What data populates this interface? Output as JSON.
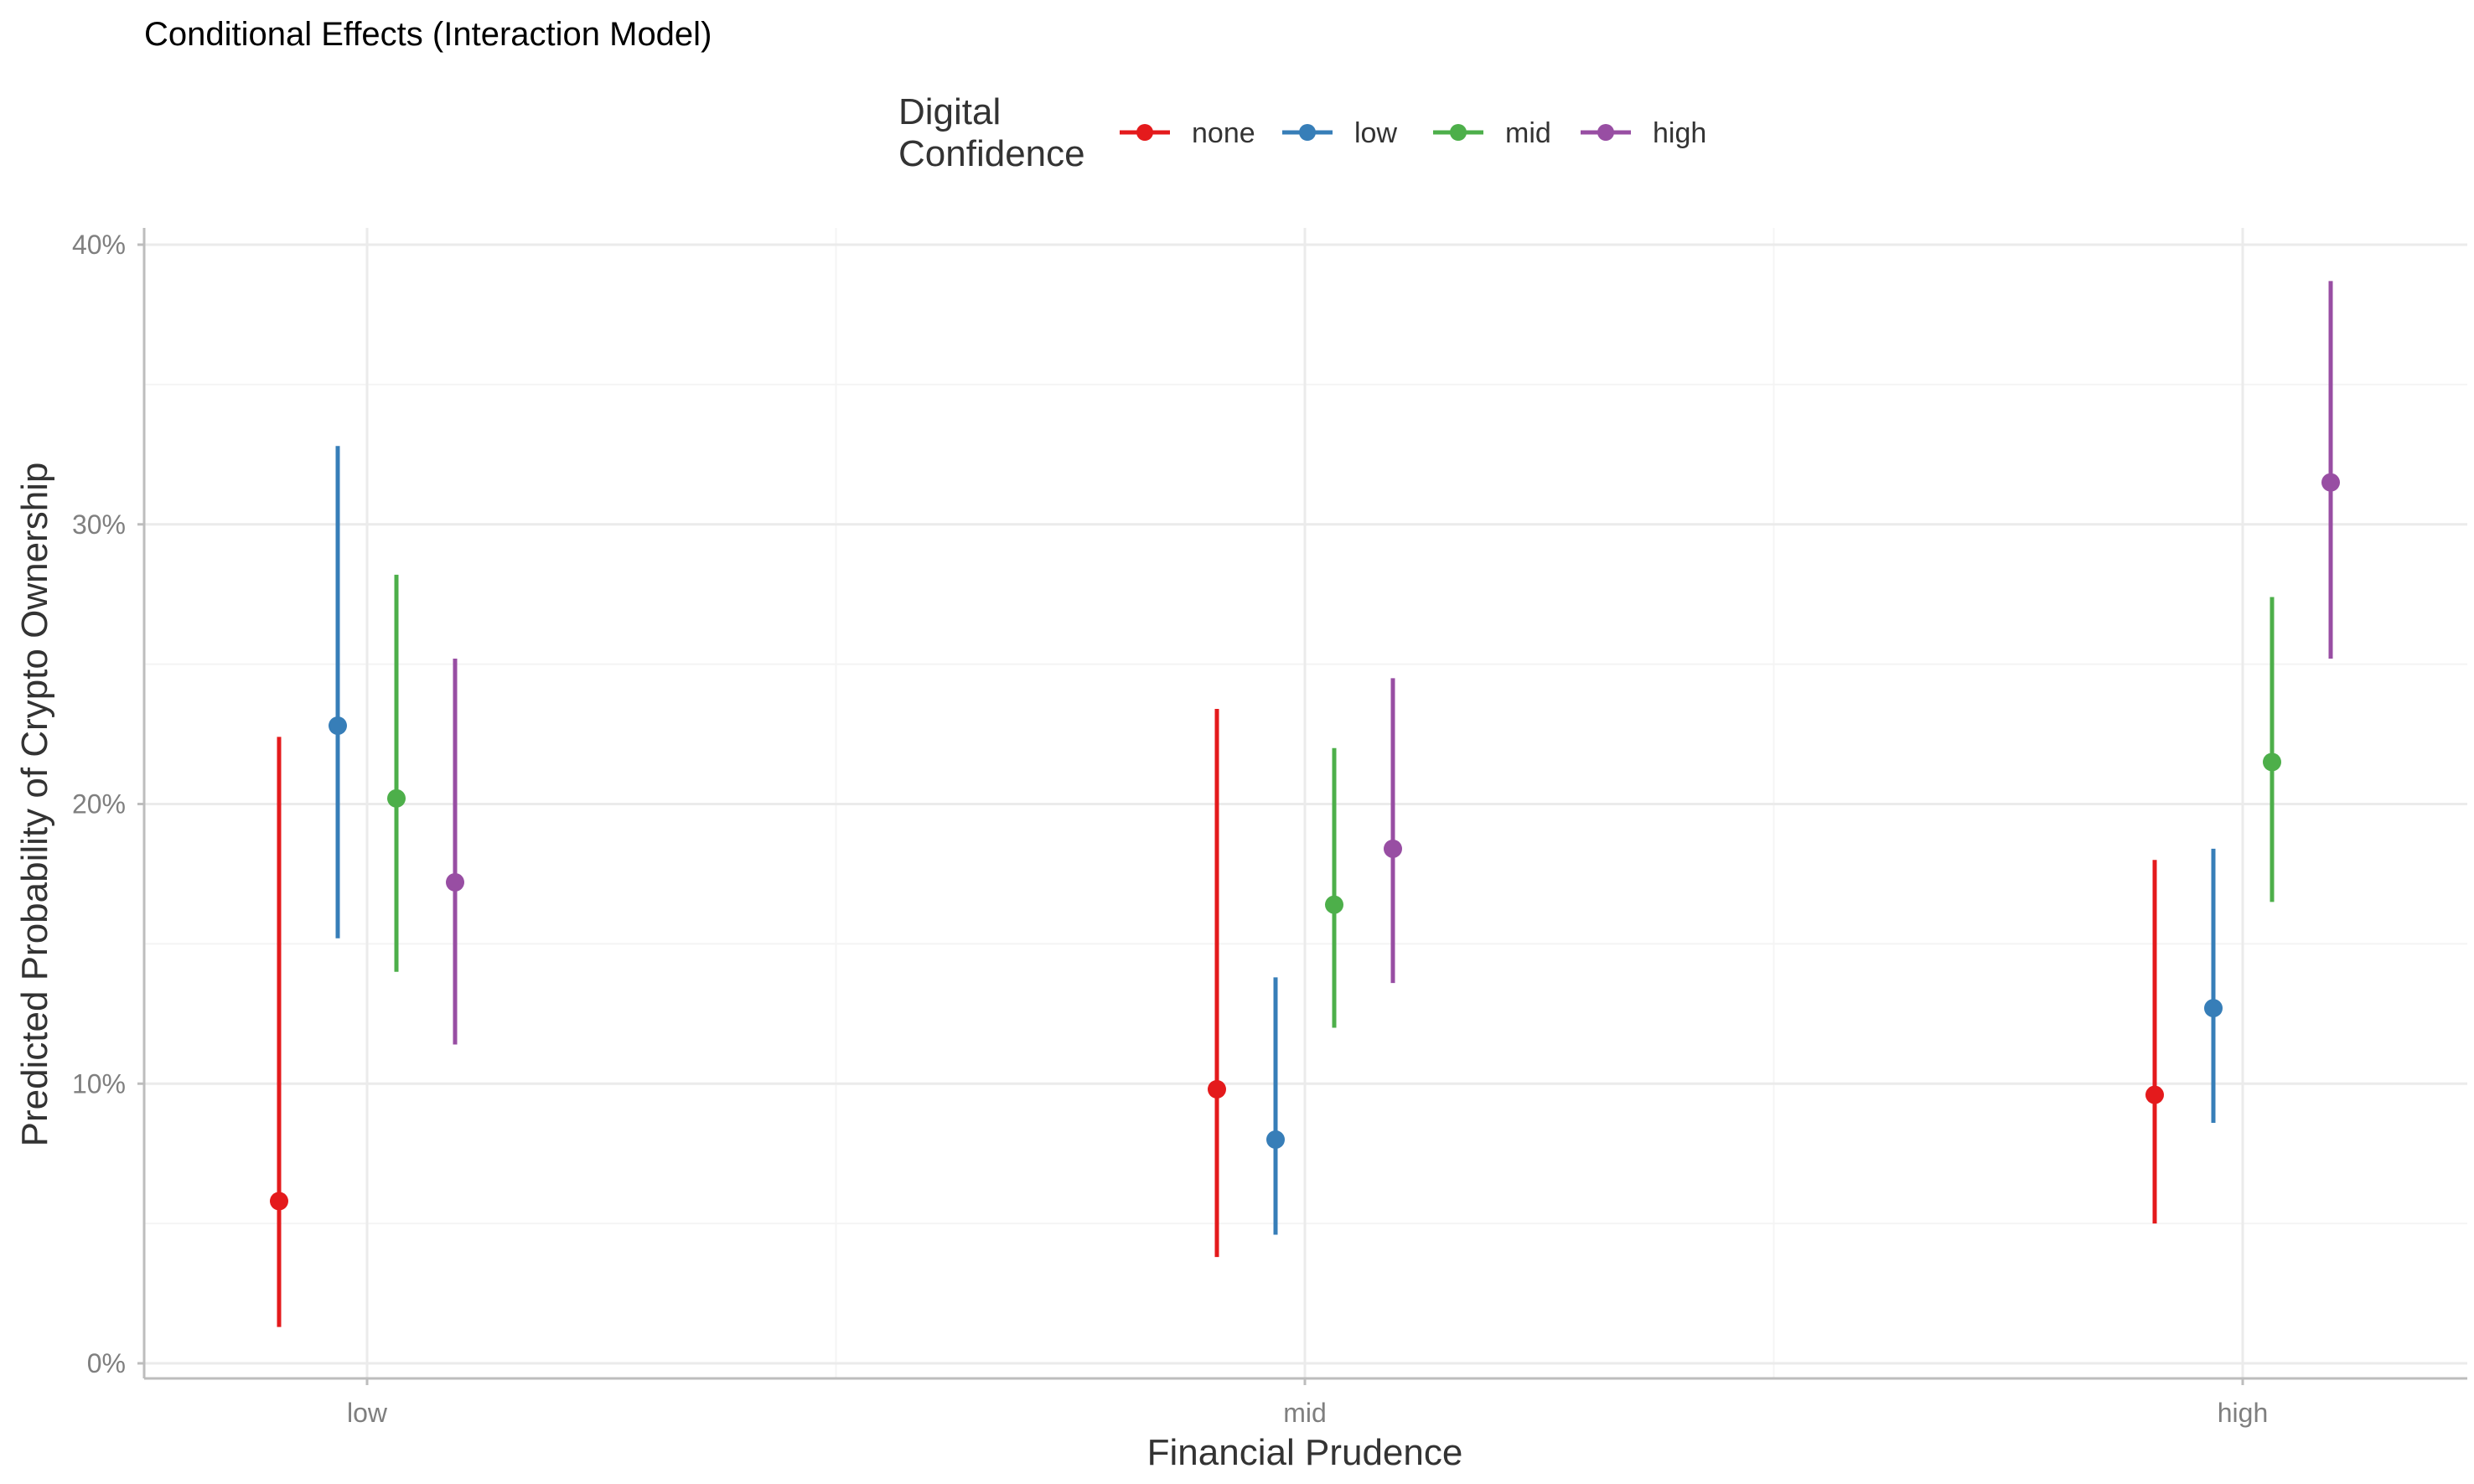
{
  "chart_data": {
    "type": "pointrange",
    "title": "Conditional Effects (Interaction Model)",
    "xlabel": "Financial Prudence",
    "ylabel": "Predicted Probability of Crypto Ownership",
    "categories": [
      "low",
      "mid",
      "high"
    ],
    "ylim": [
      0,
      0.4
    ],
    "yticks": [
      0,
      0.1,
      0.2,
      0.3,
      0.4
    ],
    "ytick_labels": [
      "0%",
      "10%",
      "20%",
      "30%",
      "40%"
    ],
    "grid": true,
    "legend": {
      "title_lines": [
        "Digital",
        "Confidence"
      ],
      "placement": "top"
    },
    "series": [
      {
        "name": "none",
        "color": "#e41a1c",
        "values": [
          0.058,
          0.098,
          0.096
        ],
        "lower": [
          0.013,
          0.038,
          0.05
        ],
        "upper": [
          0.224,
          0.234,
          0.18
        ]
      },
      {
        "name": "low",
        "color": "#377eb8",
        "values": [
          0.228,
          0.08,
          0.127
        ],
        "lower": [
          0.152,
          0.046,
          0.086
        ],
        "upper": [
          0.328,
          0.138,
          0.184
        ]
      },
      {
        "name": "mid",
        "color": "#4daf4a",
        "values": [
          0.202,
          0.164,
          0.215
        ],
        "lower": [
          0.14,
          0.12,
          0.165
        ],
        "upper": [
          0.282,
          0.22,
          0.274
        ]
      },
      {
        "name": "high",
        "color": "#984ea3",
        "values": [
          0.172,
          0.184,
          0.315
        ],
        "lower": [
          0.114,
          0.136,
          0.252
        ],
        "upper": [
          0.252,
          0.245,
          0.387
        ]
      }
    ]
  }
}
